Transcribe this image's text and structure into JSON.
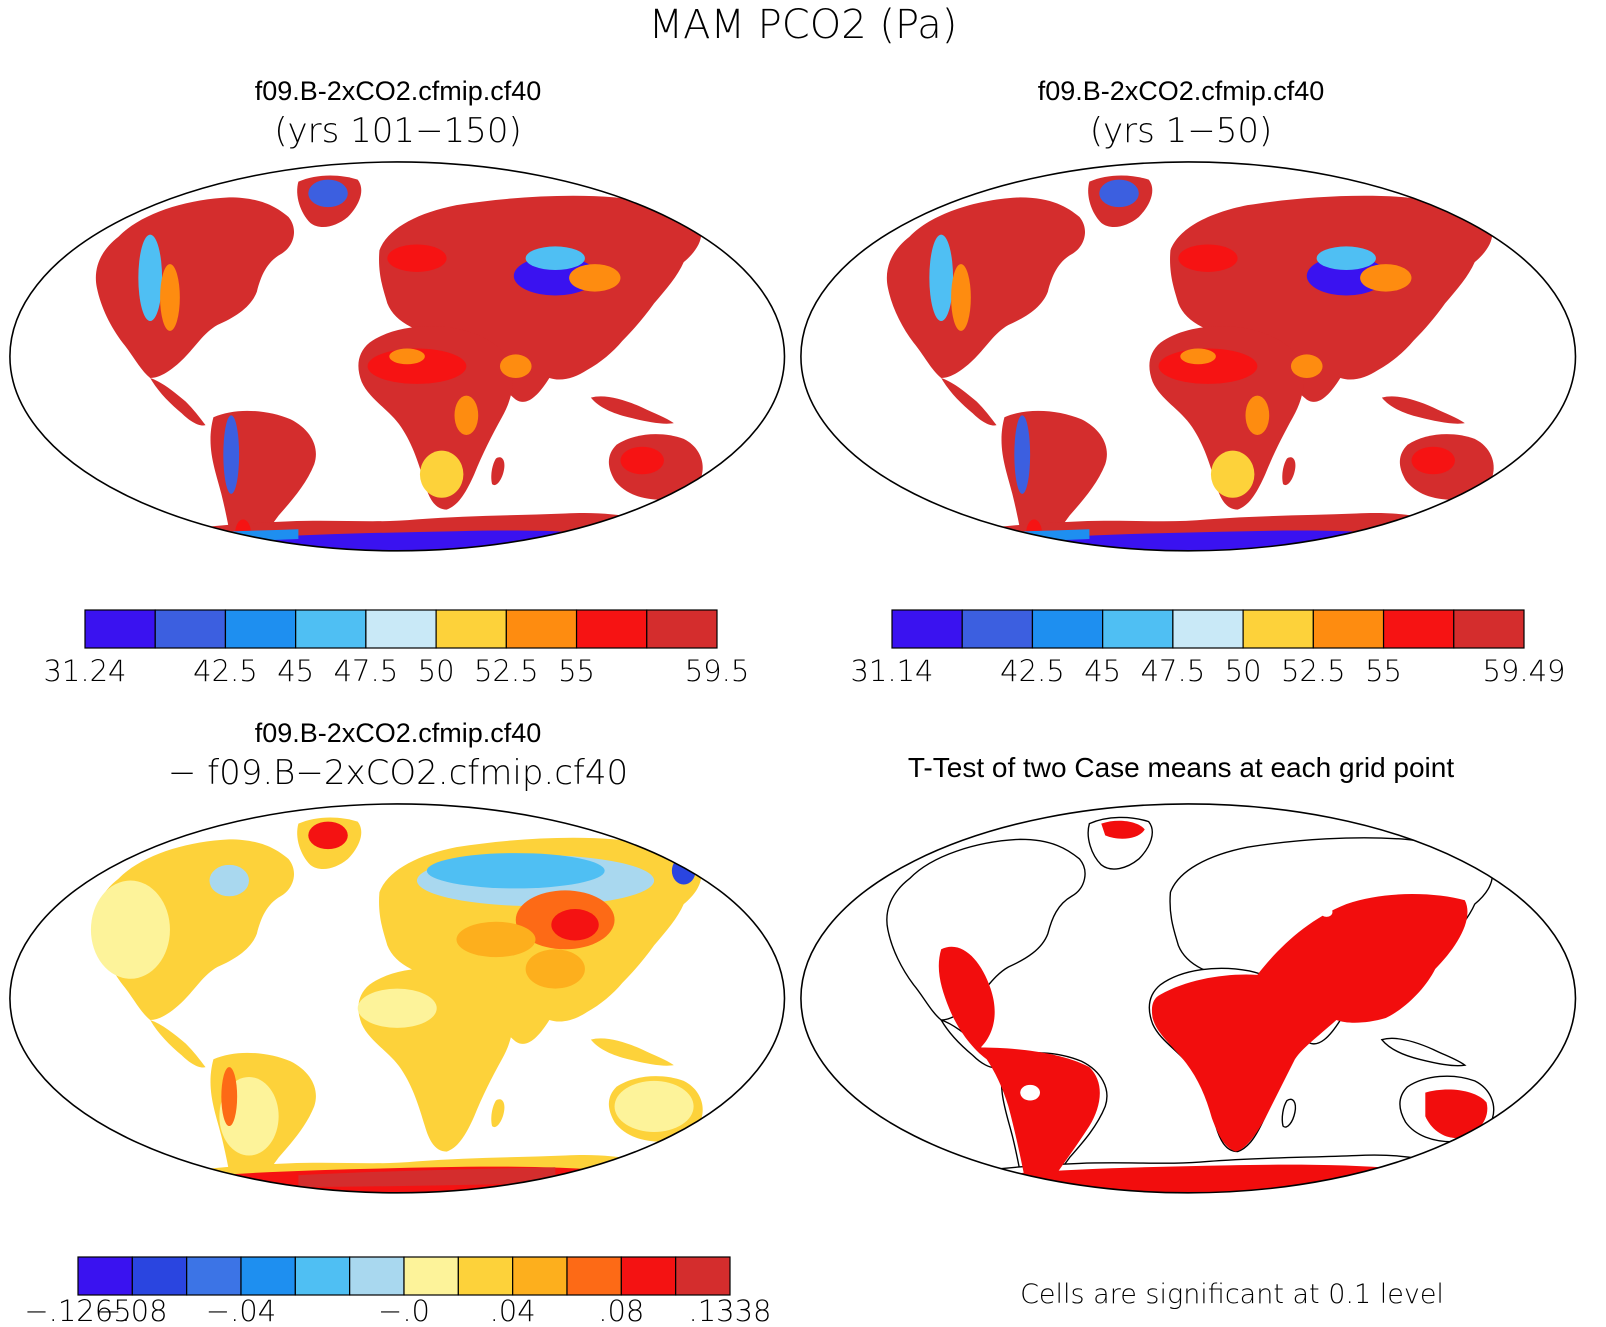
{
  "figure": {
    "title": "MAM PCO2 (Pa)"
  },
  "panels": [
    {
      "id": "case1",
      "title": "f09.B-2xCO2.cfmip.cf40",
      "subtitle": "(yrs 101−150)",
      "colorbar": {
        "colors": [
          "#3a12f0",
          "#3c5fe0",
          "#1e8ff0",
          "#4fbff3",
          "#c9e9f7",
          "#fdd23a",
          "#fe8c10",
          "#f61313",
          "#d42d2d"
        ],
        "labels": [
          {
            "text": "31.24",
            "boundary": 0
          },
          {
            "text": "42.5",
            "boundary": 2
          },
          {
            "text": "45",
            "boundary": 3
          },
          {
            "text": "47.5",
            "boundary": 4
          },
          {
            "text": "50",
            "boundary": 5
          },
          {
            "text": "52.5",
            "boundary": 6
          },
          {
            "text": "55",
            "boundary": 7
          },
          {
            "text": "59.5",
            "boundary": 9
          }
        ]
      }
    },
    {
      "id": "case2",
      "title": "f09.B-2xCO2.cfmip.cf40",
      "subtitle": "(yrs 1−50)",
      "colorbar": {
        "colors": [
          "#3a12f0",
          "#3c5fe0",
          "#1e8ff0",
          "#4fbff3",
          "#c9e9f7",
          "#fdd23a",
          "#fe8c10",
          "#f61313",
          "#d42d2d"
        ],
        "labels": [
          {
            "text": "31.14",
            "boundary": 0
          },
          {
            "text": "42.5",
            "boundary": 2
          },
          {
            "text": "45",
            "boundary": 3
          },
          {
            "text": "47.5",
            "boundary": 4
          },
          {
            "text": "50",
            "boundary": 5
          },
          {
            "text": "52.5",
            "boundary": 6
          },
          {
            "text": "55",
            "boundary": 7
          },
          {
            "text": "59.49",
            "boundary": 9
          }
        ]
      }
    },
    {
      "id": "difference",
      "title": "f09.B-2xCO2.cfmip.cf40",
      "subtitle": "− f09.B−2xCO2.cfmip.cf40",
      "colorbar": {
        "colors": [
          "#3a12f0",
          "#2a45e0",
          "#3c74e6",
          "#1e8ff0",
          "#4fbff3",
          "#a9d8ef",
          "#fdf39a",
          "#fdd23a",
          "#fdaf1d",
          "#fd6a16",
          "#f41212",
          "#d42d2d"
        ],
        "labels": [
          {
            "text": "−.1265",
            "boundary": 0
          },
          {
            "text": "−.08",
            "boundary": 1
          },
          {
            "text": "−.04",
            "boundary": 3
          },
          {
            "text": "−.0",
            "boundary": 6
          },
          {
            "text": ".04",
            "boundary": 8
          },
          {
            "text": ".08",
            "boundary": 10
          },
          {
            "text": ".1338",
            "boundary": 12
          }
        ]
      }
    },
    {
      "id": "ttest",
      "title": "T-Test of two Case means at each grid point",
      "note": "Cells are significant at 0.1 level",
      "significant_color": "#f20d0d"
    }
  ],
  "map_colors": {
    "case_land": "#d42d2d",
    "case_red": "#f61313",
    "case_orange": "#fe8c10",
    "case_yellow": "#fdd23a",
    "case_lightblue": "#c9e9f7",
    "case_midblue": "#4fbff3",
    "case_blue": "#1e8ff0",
    "case_violet": "#3a12f0",
    "diff_yellow": "#fdf39a",
    "diff_gold": "#fdd23a",
    "diff_orange": "#fdaf1d",
    "diff_red": "#f41212",
    "diff_blue": "#4fbff3",
    "diff_lightblue": "#a9d8ef",
    "diff_darkblue": "#2a45e0",
    "ttest_red": "#f20d0d"
  }
}
